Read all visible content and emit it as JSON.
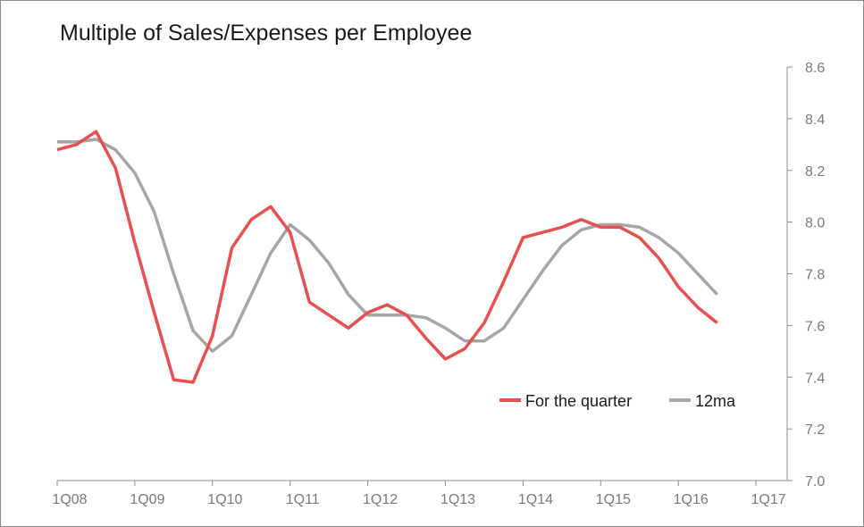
{
  "chart_data": {
    "type": "line",
    "title": "Multiple of Sales/Expenses per Employee",
    "xlabel": "",
    "ylabel": "",
    "x_tick_labels": [
      "1Q08",
      "1Q09",
      "1Q10",
      "1Q11",
      "1Q12",
      "1Q13",
      "1Q14",
      "1Q15",
      "1Q16",
      "1Q17"
    ],
    "ylim": [
      7.0,
      8.6
    ],
    "y_ticks": [
      "7.0",
      "7.2",
      "7.4",
      "7.6",
      "7.8",
      "8.0",
      "8.2",
      "8.4",
      "8.6"
    ],
    "y_axis_side": "right",
    "grid": false,
    "legend": "inside bottom-right",
    "x": [
      2008.0,
      2008.25,
      2008.5,
      2008.75,
      2009.0,
      2009.25,
      2009.5,
      2009.75,
      2010.0,
      2010.25,
      2010.5,
      2010.75,
      2011.0,
      2011.25,
      2011.5,
      2011.75,
      2012.0,
      2012.25,
      2012.5,
      2012.75,
      2013.0,
      2013.25,
      2013.5,
      2013.75,
      2014.0,
      2014.25,
      2014.5,
      2014.75,
      2015.0,
      2015.25,
      2015.5,
      2015.75,
      2016.0,
      2016.25,
      2016.5
    ],
    "series": [
      {
        "name": "For the quarter",
        "color": "#e85050",
        "values": [
          8.28,
          8.3,
          8.35,
          8.21,
          7.92,
          7.65,
          7.39,
          7.38,
          7.56,
          7.9,
          8.01,
          8.06,
          7.96,
          7.69,
          7.64,
          7.59,
          7.65,
          7.68,
          7.64,
          7.55,
          7.47,
          7.51,
          7.61,
          7.77,
          7.94,
          7.96,
          7.98,
          8.01,
          7.98,
          7.98,
          7.94,
          7.86,
          7.75,
          7.67,
          7.61
        ]
      },
      {
        "name": "12ma",
        "color": "#a6a6a6",
        "values": [
          8.31,
          8.31,
          8.32,
          8.28,
          8.19,
          8.04,
          7.8,
          7.58,
          7.5,
          7.56,
          7.72,
          7.88,
          7.99,
          7.93,
          7.84,
          7.72,
          7.64,
          7.64,
          7.64,
          7.63,
          7.59,
          7.54,
          7.54,
          7.59,
          7.7,
          7.81,
          7.91,
          7.97,
          7.99,
          7.99,
          7.98,
          7.94,
          7.88,
          7.8,
          7.72
        ]
      }
    ]
  }
}
